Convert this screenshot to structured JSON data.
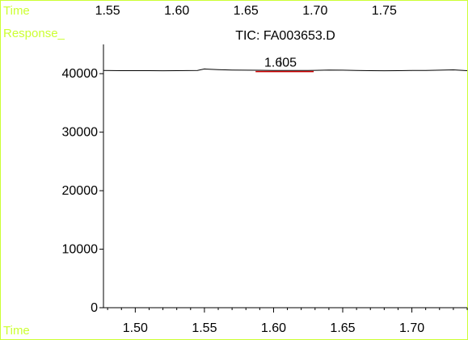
{
  "chart_data": {
    "type": "line",
    "title": "TIC: FA003653.D",
    "ylabel": "Response_",
    "xlabel": "Time",
    "top_axis_label": "Time",
    "xlim": [
      1.477,
      1.74
    ],
    "ylim": [
      0,
      45000
    ],
    "x_ticks": [
      1.5,
      1.55,
      1.6,
      1.65,
      1.7
    ],
    "x_tick_labels": [
      "1.50",
      "1.55",
      "1.60",
      "1.65",
      "1.70"
    ],
    "top_x_ticks": [
      1.55,
      1.6,
      1.65,
      1.7,
      1.75
    ],
    "top_x_tick_labels": [
      "1.55",
      "1.60",
      "1.65",
      "1.70",
      "1.75"
    ],
    "y_ticks": [
      0,
      10000,
      20000,
      30000,
      40000
    ],
    "y_tick_labels": [
      "0",
      "10000",
      "20000",
      "30000",
      "40000"
    ],
    "series": [
      {
        "x": [
          1.477,
          1.49,
          1.5,
          1.51,
          1.52,
          1.53,
          1.545,
          1.55,
          1.56,
          1.57,
          1.58,
          1.59,
          1.6,
          1.61,
          1.62,
          1.63,
          1.64,
          1.65,
          1.66,
          1.67,
          1.68,
          1.69,
          1.7,
          1.71,
          1.72,
          1.73,
          1.74
        ],
        "values": [
          40540,
          40520,
          40510,
          40520,
          40500,
          40520,
          40560,
          40800,
          40700,
          40620,
          40600,
          40580,
          40560,
          40550,
          40540,
          40570,
          40620,
          40600,
          40550,
          40520,
          40500,
          40520,
          40540,
          40560,
          40600,
          40650,
          40520
        ]
      }
    ],
    "peak": {
      "label": "1.605",
      "x": 1.605,
      "y": 40500,
      "baseline_start": 1.587,
      "baseline_end": 1.629
    },
    "colors": {
      "line": "#000000",
      "baseline": "#cc0000",
      "axis_label": "#ccff33",
      "frame": "#ccff33",
      "text": "#000000"
    }
  }
}
